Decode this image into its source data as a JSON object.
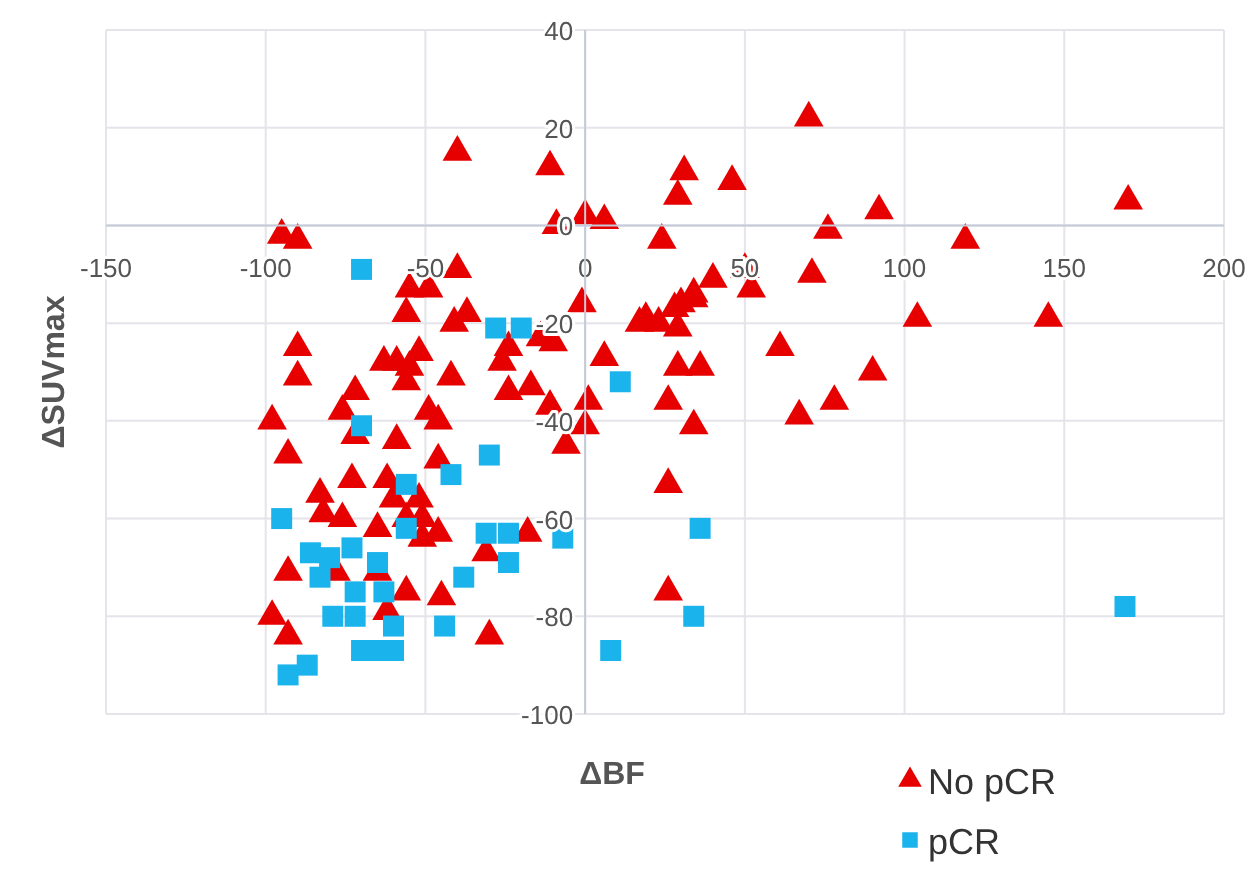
{
  "chart_data": {
    "type": "scatter",
    "xlabel": "ΔBF",
    "ylabel": "ΔSUVmax",
    "xlim": [
      -150,
      200
    ],
    "ylim": [
      -100,
      40
    ],
    "xticks": [
      -150,
      -100,
      -50,
      0,
      50,
      100,
      150,
      200
    ],
    "yticks": [
      -100,
      -80,
      -60,
      -40,
      -20,
      0,
      20,
      40
    ],
    "grid": true,
    "legend": "bottom right",
    "series": [
      {
        "name": "No pCR",
        "color": "#e60000",
        "marker": "triangle",
        "x": [
          -40,
          -11,
          -95,
          -90,
          -9,
          0,
          6,
          -40,
          -55,
          -49,
          -56,
          -37,
          -41,
          -1,
          -90,
          -24,
          -14,
          -10,
          17,
          -63,
          -59,
          -52,
          -55,
          -26,
          6,
          -90,
          -56,
          -42,
          -72,
          -24,
          -17,
          70,
          31,
          46,
          29,
          92,
          170,
          76,
          24,
          119,
          50,
          52,
          40,
          71,
          34,
          34,
          30,
          28,
          19,
          23,
          29,
          104,
          145,
          61,
          29,
          36,
          90,
          26,
          78,
          67,
          34,
          26,
          26,
          -98,
          -93,
          -76,
          -72,
          -49,
          -46,
          -11,
          1,
          0,
          -6,
          -59,
          -46,
          -73,
          -62,
          -83,
          -60,
          -52,
          -82,
          -76,
          -56,
          -51,
          -65,
          -46,
          -51,
          -18,
          -31,
          -93,
          -78,
          -65,
          -56,
          -45,
          -62,
          -98,
          -93,
          -30
        ],
        "values": [
          15,
          12,
          -2,
          -3,
          0,
          2,
          1,
          -9,
          -13,
          -13,
          -18,
          -18,
          -20,
          -16,
          -25,
          -25,
          -23,
          -24,
          -20,
          -28,
          -28,
          -26,
          -29,
          -28,
          -27,
          -31,
          -32,
          -31,
          -34,
          -34,
          -33,
          22,
          11,
          9,
          6,
          3,
          5,
          -1,
          -3,
          -3,
          -9,
          -13,
          -11,
          -10,
          -14,
          -15,
          -16,
          -17,
          -19,
          -20,
          -21,
          -19,
          -19,
          -25,
          -29,
          -29,
          -30,
          -36,
          -36,
          -39,
          -41,
          -53,
          -75,
          -40,
          -47,
          -38,
          -43,
          -38,
          -40,
          -37,
          -36,
          -41,
          -45,
          -44,
          -48,
          -52,
          -52,
          -55,
          -56,
          -56,
          -59,
          -60,
          -60,
          -60,
          -62,
          -63,
          -64,
          -63,
          -67,
          -71,
          -71,
          -71,
          -75,
          -76,
          -79,
          -80,
          -84,
          -84
        ]
      },
      {
        "name": "pCR",
        "color": "#1ab3ec",
        "marker": "square",
        "x": [
          -70,
          -28,
          -20,
          11,
          36,
          34,
          8,
          169,
          -70,
          -30,
          -42,
          -56,
          -95,
          -56,
          -31,
          -24,
          -7,
          -86,
          -80,
          -73,
          -65,
          -24,
          -38,
          -83,
          -72,
          -63,
          -79,
          -72,
          -60,
          -44,
          -70,
          -65,
          -60,
          -93,
          -87
        ],
        "values": [
          -9,
          -21,
          -21,
          -32,
          -62,
          -80,
          -87,
          -78,
          -41,
          -47,
          -51,
          -53,
          -60,
          -62,
          -63,
          -63,
          -64,
          -67,
          -68,
          -66,
          -69,
          -69,
          -72,
          -72,
          -75,
          -75,
          -80,
          -80,
          -82,
          -82,
          -87,
          -87,
          -87,
          -92,
          -90
        ]
      }
    ]
  }
}
